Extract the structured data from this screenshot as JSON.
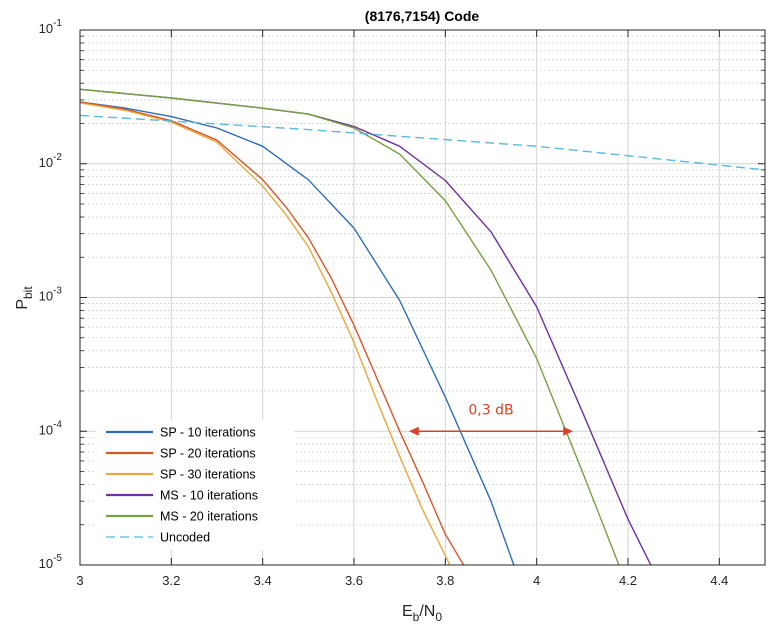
{
  "chart_data": {
    "type": "line",
    "title": "(8176,7154) Code",
    "xlabel": {
      "main": "E",
      "sub1": "b",
      "mid": "/N",
      "sub2": "0"
    },
    "ylabel": {
      "main": "P",
      "sub": "bit"
    },
    "xlim": [
      3,
      4.5
    ],
    "ylim": [
      1e-05,
      0.1
    ],
    "yscale": "log",
    "grid": true,
    "legend_position": "bottom-left",
    "x_ticks": [
      3,
      3.2,
      3.4,
      3.6,
      3.8,
      4,
      4.2,
      4.4
    ],
    "x_tick_labels": [
      "3",
      "3.2",
      "3.4",
      "3.6",
      "3.8",
      "4",
      "4.2",
      "4.4"
    ],
    "y_ticks": [
      1e-05,
      0.0001,
      0.001,
      0.01,
      0.1
    ],
    "y_tick_labels": [
      {
        "base": "10",
        "exp": "-5"
      },
      {
        "base": "10",
        "exp": "-4"
      },
      {
        "base": "10",
        "exp": "-3"
      },
      {
        "base": "10",
        "exp": "-2"
      },
      {
        "base": "10",
        "exp": "-1"
      }
    ],
    "series": [
      {
        "name": "SP - 10 iterations",
        "color": "#2e6db4",
        "dash": "solid",
        "x": [
          3,
          3.1,
          3.2,
          3.3,
          3.4,
          3.5,
          3.6,
          3.7,
          3.8,
          3.9,
          3.95
        ],
        "y": [
          0.029,
          0.026,
          0.0225,
          0.0185,
          0.0135,
          0.0076,
          0.0033,
          0.00095,
          0.00018,
          3e-05,
          1e-05
        ]
      },
      {
        "name": "SP - 20 iterations",
        "color": "#d4572a",
        "dash": "solid",
        "x": [
          3,
          3.1,
          3.2,
          3.3,
          3.4,
          3.45,
          3.5,
          3.55,
          3.6,
          3.65,
          3.7,
          3.75,
          3.8,
          3.84
        ],
        "y": [
          0.029,
          0.0255,
          0.021,
          0.015,
          0.0076,
          0.0048,
          0.0028,
          0.0014,
          0.00062,
          0.00025,
          0.0001,
          4.2e-05,
          1.7e-05,
          1e-05
        ]
      },
      {
        "name": "SP - 30 iterations",
        "color": "#e8a93a",
        "dash": "solid",
        "x": [
          3,
          3.1,
          3.2,
          3.3,
          3.4,
          3.45,
          3.5,
          3.55,
          3.6,
          3.65,
          3.7,
          3.75,
          3.81
        ],
        "y": [
          0.0285,
          0.025,
          0.0205,
          0.0145,
          0.0068,
          0.0042,
          0.0024,
          0.0011,
          0.00046,
          0.00017,
          6.5e-05,
          2.6e-05,
          1e-05
        ]
      },
      {
        "name": "MS  - 10 iterations",
        "color": "#7030a0",
        "dash": "solid",
        "x": [
          3,
          3.2,
          3.4,
          3.5,
          3.6,
          3.7,
          3.8,
          3.9,
          4,
          4.1,
          4.2,
          4.25
        ],
        "y": [
          0.036,
          0.031,
          0.026,
          0.0235,
          0.019,
          0.0135,
          0.0075,
          0.0031,
          0.00085,
          0.00014,
          2.2e-05,
          1e-05
        ]
      },
      {
        "name": "MS  - 20 iterations",
        "color": "#77a043",
        "dash": "solid",
        "x": [
          3,
          3.2,
          3.4,
          3.5,
          3.6,
          3.7,
          3.8,
          3.9,
          4,
          4.1,
          4.18
        ],
        "y": [
          0.036,
          0.031,
          0.026,
          0.0235,
          0.0185,
          0.0118,
          0.0053,
          0.0016,
          0.00035,
          5e-05,
          1e-05
        ]
      },
      {
        "name": "Uncoded",
        "color": "#5bb8e0",
        "dash": "dashed",
        "x": [
          3,
          3.5,
          4,
          4.5
        ],
        "y": [
          0.023,
          0.018,
          0.0135,
          0.009
        ]
      }
    ],
    "annotation": {
      "text": "0,3 dB",
      "x_start": 3.72,
      "x_end": 4.08,
      "y": 0.0001,
      "color": "#d9412b"
    }
  }
}
